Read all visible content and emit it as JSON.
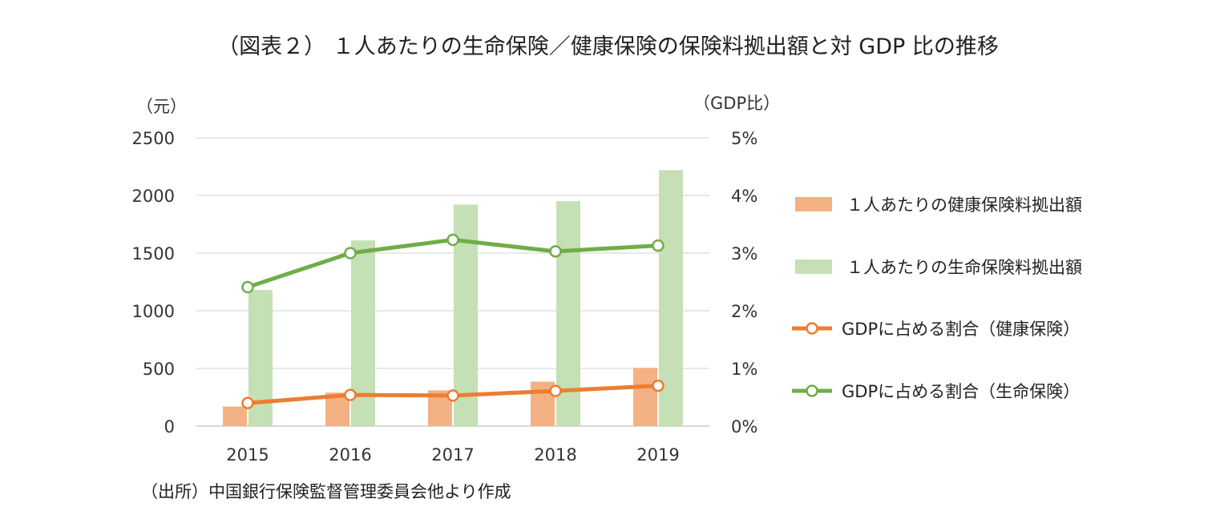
{
  "title": "（図表２） １人あたりの生命保険／健康保険の保険料拠出額と対 GDP 比の推移",
  "source": "（出所）中国銀行保険監督管理委員会他より作成",
  "chart_data": {
    "type": "bar",
    "categories": [
      "2015",
      "2016",
      "2017",
      "2018",
      "2019"
    ],
    "y_left": {
      "label": "（元）",
      "range": [
        0,
        2500
      ],
      "ticks": [
        "0",
        "500",
        "1000",
        "1500",
        "2000",
        "2500"
      ]
    },
    "y_right": {
      "label": "（GDP比）",
      "range": [
        0,
        5
      ],
      "ticks": [
        "0%",
        "1%",
        "2%",
        "3%",
        "4%",
        "5%"
      ]
    },
    "grid": true,
    "legend_position": "right",
    "series": [
      {
        "name": "１人あたりの健康保険料拠出額",
        "kind": "bar",
        "axis": "left",
        "color": "#f4b183",
        "values": [
          170,
          290,
          310,
          385,
          505
        ]
      },
      {
        "name": "１人あたりの生命保険料拠出額",
        "kind": "bar",
        "axis": "left",
        "color": "#c5e0b4",
        "values": [
          1180,
          1610,
          1920,
          1950,
          2220
        ]
      },
      {
        "name": "GDPに占める割合（健康保険）",
        "kind": "line",
        "axis": "right",
        "color": "#ed7d31",
        "values": [
          0.4,
          0.54,
          0.53,
          0.61,
          0.7
        ]
      },
      {
        "name": "GDPに占める割合（生命保険）",
        "kind": "line",
        "axis": "right",
        "color": "#70ad47",
        "values": [
          2.41,
          3.0,
          3.23,
          3.03,
          3.13
        ]
      }
    ]
  }
}
